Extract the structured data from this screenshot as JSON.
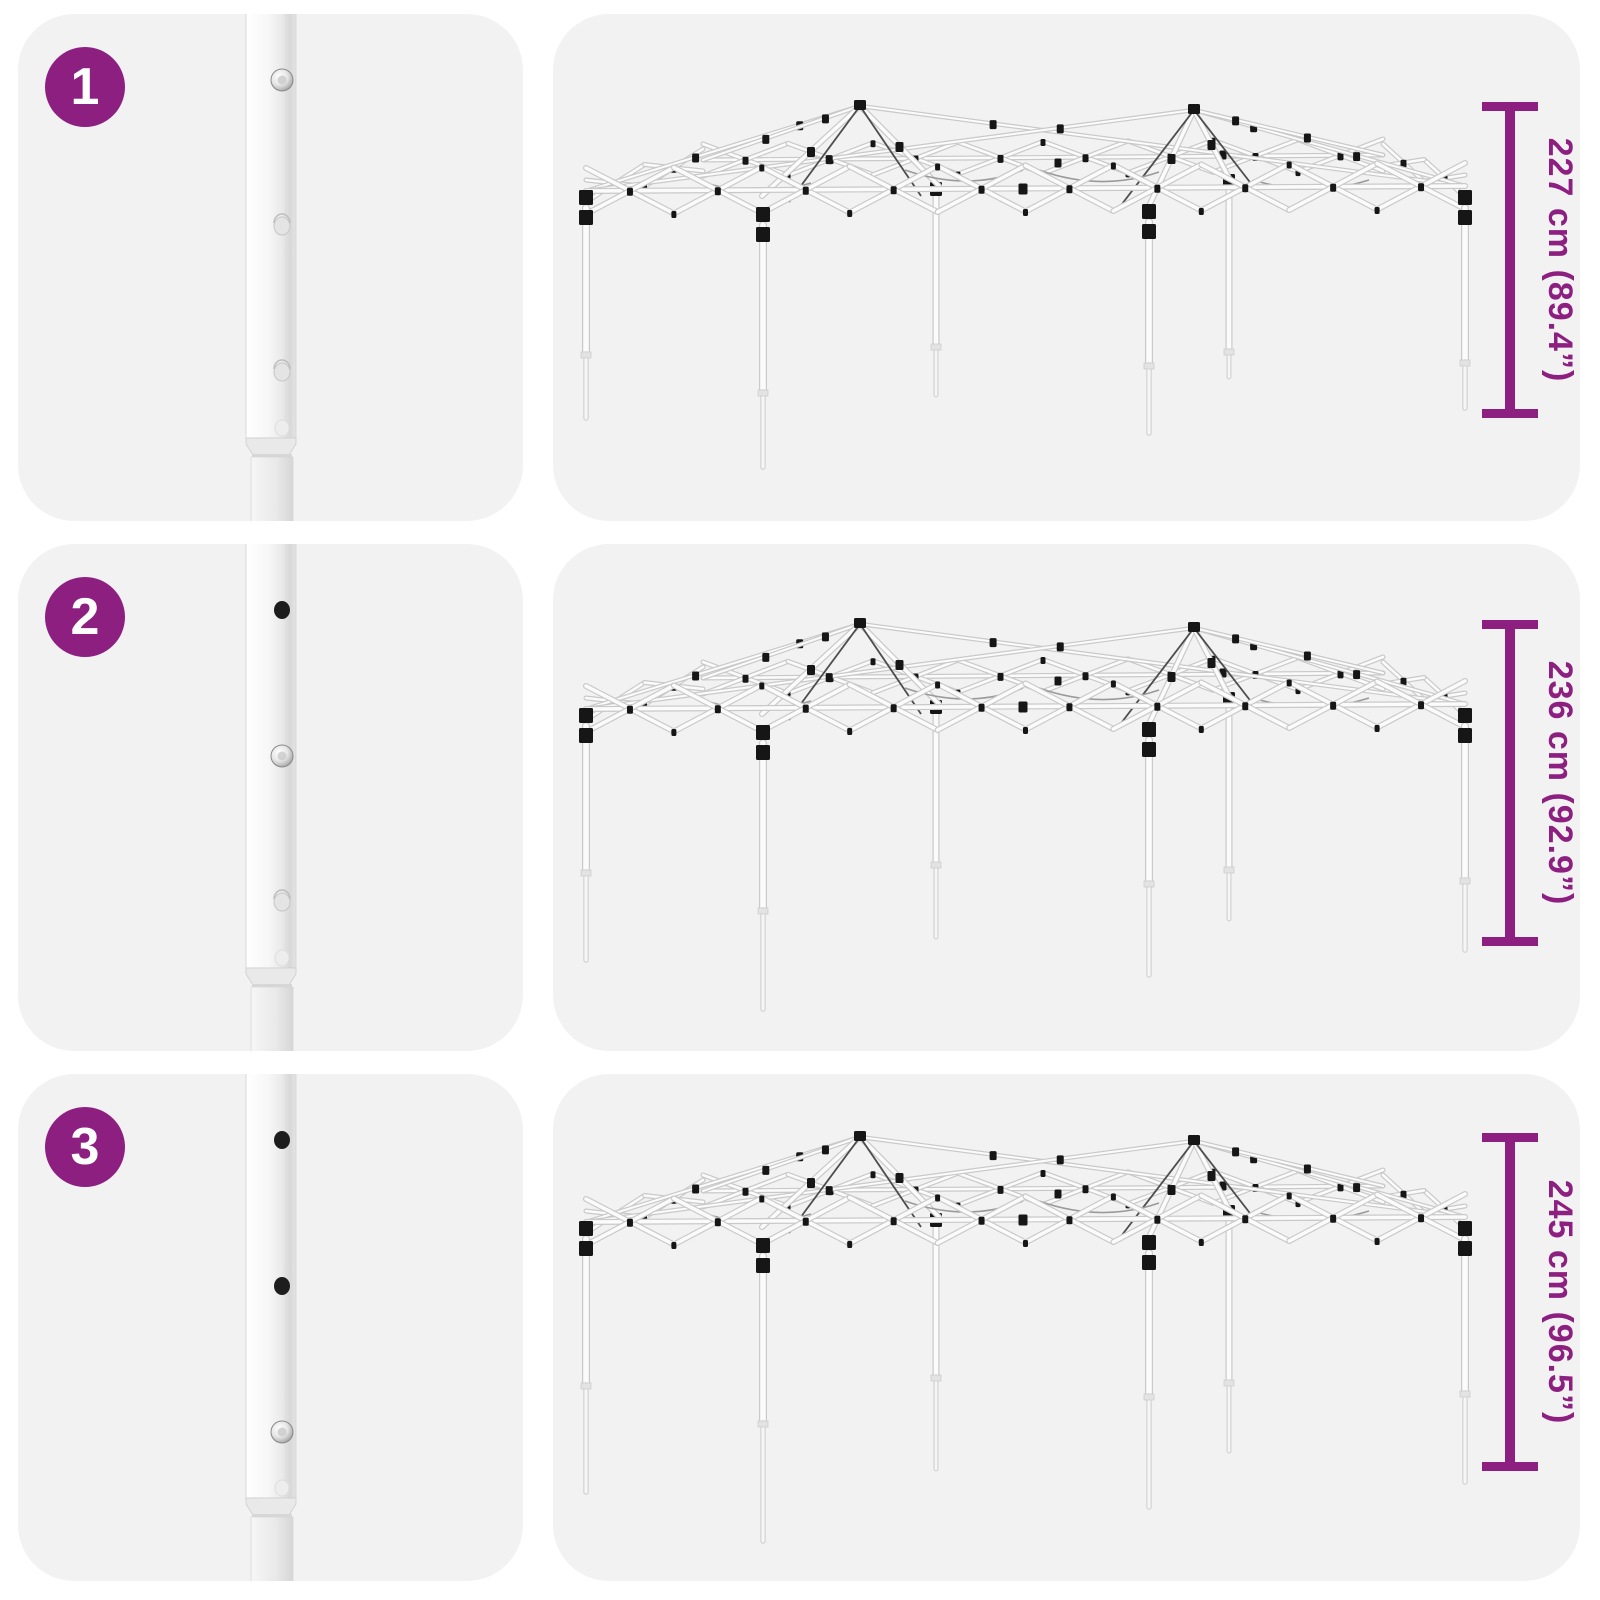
{
  "colors": {
    "accent": "#8d1f81",
    "card_background": "#f2f2f2",
    "page_background": "#ffffff",
    "frame_joint_black": "#161616",
    "tube_white": "#fbfbfb",
    "tube_outline": "#c9c9c9"
  },
  "icons": {
    "measurement_bar": "vertical-dimension-bar-with-end-caps",
    "pole_pin": "silver-push-button-pin",
    "pole_hole_open": "open-adjustment-hole",
    "pole_hole_closed": "covered-adjustment-hole"
  },
  "steps": [
    {
      "badge": "1",
      "height_label": "227 cm (89.4”)",
      "pole_pin_hole": 1,
      "holes_total": 3
    },
    {
      "badge": "2",
      "height_label": "236 cm (92.9”)",
      "pole_pin_hole": 2,
      "holes_total": 3
    },
    {
      "badge": "3",
      "height_label": "245 cm (96.5”)",
      "pole_pin_hole": 3,
      "holes_total": 3
    }
  ]
}
